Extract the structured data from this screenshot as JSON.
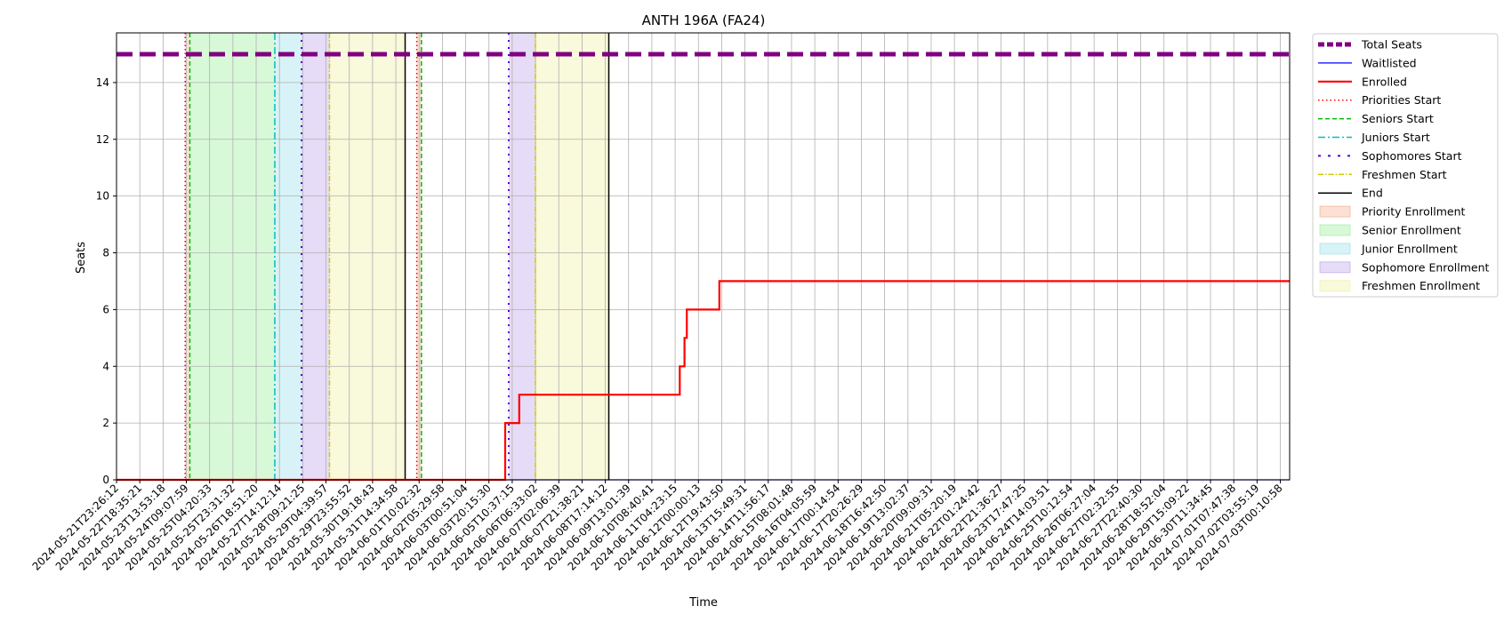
{
  "chart_data": {
    "type": "line",
    "title": "ANTH 196A (FA24)",
    "xlabel": "Time",
    "ylabel": "Seats",
    "ylim": [
      0,
      15.75
    ],
    "yticks": [
      0,
      2,
      4,
      6,
      8,
      10,
      12,
      14
    ],
    "grid": true,
    "legend_position": "outside-top-right",
    "x_ticks": [
      "2024-05-21T23:26:12",
      "2024-05-22T18:35:21",
      "2024-05-23T13:53:18",
      "2024-05-24T09:07:59",
      "2024-05-25T04:20:33",
      "2024-05-25T23:31:32",
      "2024-05-26T18:51:20",
      "2024-05-27T14:12:14",
      "2024-05-28T09:21:25",
      "2024-05-29T04:39:57",
      "2024-05-29T23:55:52",
      "2024-05-30T19:18:43",
      "2024-05-31T14:34:58",
      "2024-06-01T10:02:32",
      "2024-06-02T05:29:58",
      "2024-06-03T00:51:04",
      "2024-06-03T20:15:30",
      "2024-06-05T10:37:15",
      "2024-06-06T06:33:02",
      "2024-06-07T02:06:39",
      "2024-06-07T21:38:21",
      "2024-06-08T17:14:12",
      "2024-06-09T13:01:39",
      "2024-06-10T08:40:41",
      "2024-06-11T04:23:15",
      "2024-06-12T00:00:13",
      "2024-06-12T19:43:50",
      "2024-06-13T15:49:31",
      "2024-06-14T11:56:17",
      "2024-06-15T08:01:48",
      "2024-06-16T04:05:59",
      "2024-06-17T00:14:54",
      "2024-06-17T20:26:29",
      "2024-06-18T16:42:50",
      "2024-06-19T13:02:37",
      "2024-06-20T09:09:31",
      "2024-06-21T05:20:19",
      "2024-06-22T01:24:42",
      "2024-06-22T21:36:27",
      "2024-06-23T17:47:25",
      "2024-06-24T14:03:51",
      "2024-06-25T10:12:54",
      "2024-06-26T06:27:04",
      "2024-06-27T02:32:55",
      "2024-06-27T22:40:30",
      "2024-06-28T18:52:04",
      "2024-06-29T15:09:22",
      "2024-06-30T11:34:45",
      "2024-07-01T07:47:38",
      "2024-07-02T03:55:19",
      "2024-07-03T00:10:58"
    ],
    "series": [
      {
        "name": "Total Seats",
        "color": "#800080",
        "style": "dashed-thick",
        "points": [
          [
            0,
            15
          ],
          [
            50.4,
            15
          ]
        ]
      },
      {
        "name": "Waitlisted",
        "color": "#0000ff",
        "style": "solid-thin",
        "points": [
          [
            0,
            0
          ],
          [
            50.4,
            0
          ]
        ]
      },
      {
        "name": "Enrolled",
        "color": "#ff0000",
        "style": "step",
        "points": [
          [
            0,
            0
          ],
          [
            16.7,
            0
          ],
          [
            16.7,
            2
          ],
          [
            17.3,
            2
          ],
          [
            17.3,
            3
          ],
          [
            24.2,
            3
          ],
          [
            24.2,
            4
          ],
          [
            24.4,
            4
          ],
          [
            24.4,
            5
          ],
          [
            24.5,
            5
          ],
          [
            24.5,
            6
          ],
          [
            25.9,
            6
          ],
          [
            25.9,
            7
          ],
          [
            50.4,
            7
          ]
        ]
      }
    ],
    "events": [
      {
        "name": "Priorities Start",
        "color": "#ff0000",
        "dash": "1.5,3",
        "x": [
          2.95,
          12.9
        ]
      },
      {
        "name": "Seniors Start",
        "color": "#00bb00",
        "dash": "5,3",
        "x": [
          3.15,
          13.1
        ]
      },
      {
        "name": "Juniors Start",
        "color": "#00bfbf",
        "dash": "8,3,2,3",
        "x": [
          6.8
        ]
      },
      {
        "name": "Sophomores Start",
        "color": "#5500dd",
        "dash": "2,6",
        "x": [
          7.95,
          16.85
        ]
      },
      {
        "name": "Freshmen Start",
        "color": "#cccc00",
        "dash": "6,2,1.5,2",
        "x": [
          9.15,
          18.0
        ]
      },
      {
        "name": "End",
        "color": "#000000",
        "dash": "",
        "x": [
          12.4,
          21.15
        ]
      }
    ],
    "spans": [
      {
        "name": "Priority Enrollment",
        "color": "#f4a582",
        "ranges": [
          [
            2.95,
            3.15
          ],
          [
            12.9,
            13.1
          ]
        ]
      },
      {
        "name": "Senior Enrollment",
        "color": "#90ee90",
        "ranges": [
          [
            3.15,
            6.8
          ]
        ]
      },
      {
        "name": "Junior Enrollment",
        "color": "#8fdde8",
        "ranges": [
          [
            6.8,
            7.95
          ]
        ]
      },
      {
        "name": "Sophomore Enrollment",
        "color": "#b79ae8",
        "ranges": [
          [
            7.95,
            9.15
          ],
          [
            16.85,
            18.0
          ]
        ]
      },
      {
        "name": "Freshmen Enrollment",
        "color": "#eeee99",
        "ranges": [
          [
            9.15,
            12.4
          ],
          [
            18.0,
            21.15
          ]
        ]
      }
    ],
    "legend": [
      {
        "label": "Total Seats",
        "kind": "line",
        "color": "#800080",
        "dash": "7,3",
        "width": 5
      },
      {
        "label": "Waitlisted",
        "kind": "line",
        "color": "#0000ff",
        "dash": "",
        "width": 1.3
      },
      {
        "label": "Enrolled",
        "kind": "line",
        "color": "#ff0000",
        "dash": "",
        "width": 2.2
      },
      {
        "label": "Priorities Start",
        "kind": "line",
        "color": "#ff0000",
        "dash": "1.5,3",
        "width": 1.5
      },
      {
        "label": "Seniors Start",
        "kind": "line",
        "color": "#00bb00",
        "dash": "5,3",
        "width": 1.5
      },
      {
        "label": "Juniors Start",
        "kind": "line",
        "color": "#00bfbf",
        "dash": "8,3,2,3",
        "width": 1.5
      },
      {
        "label": "Sophomores Start",
        "kind": "line",
        "color": "#5500dd",
        "dash": "3,8",
        "width": 2
      },
      {
        "label": "Freshmen Start",
        "kind": "line",
        "color": "#cccc00",
        "dash": "6,2,1.5,2",
        "width": 1.5
      },
      {
        "label": "End",
        "kind": "line",
        "color": "#000000",
        "dash": "",
        "width": 1.5
      },
      {
        "label": "Priority Enrollment",
        "kind": "patch",
        "color": "#f4a582"
      },
      {
        "label": "Senior Enrollment",
        "kind": "patch",
        "color": "#90ee90"
      },
      {
        "label": "Junior Enrollment",
        "kind": "patch",
        "color": "#8fdde8"
      },
      {
        "label": "Sophomore Enrollment",
        "kind": "patch",
        "color": "#b79ae8"
      },
      {
        "label": "Freshmen Enrollment",
        "kind": "patch",
        "color": "#eeee99"
      }
    ]
  }
}
